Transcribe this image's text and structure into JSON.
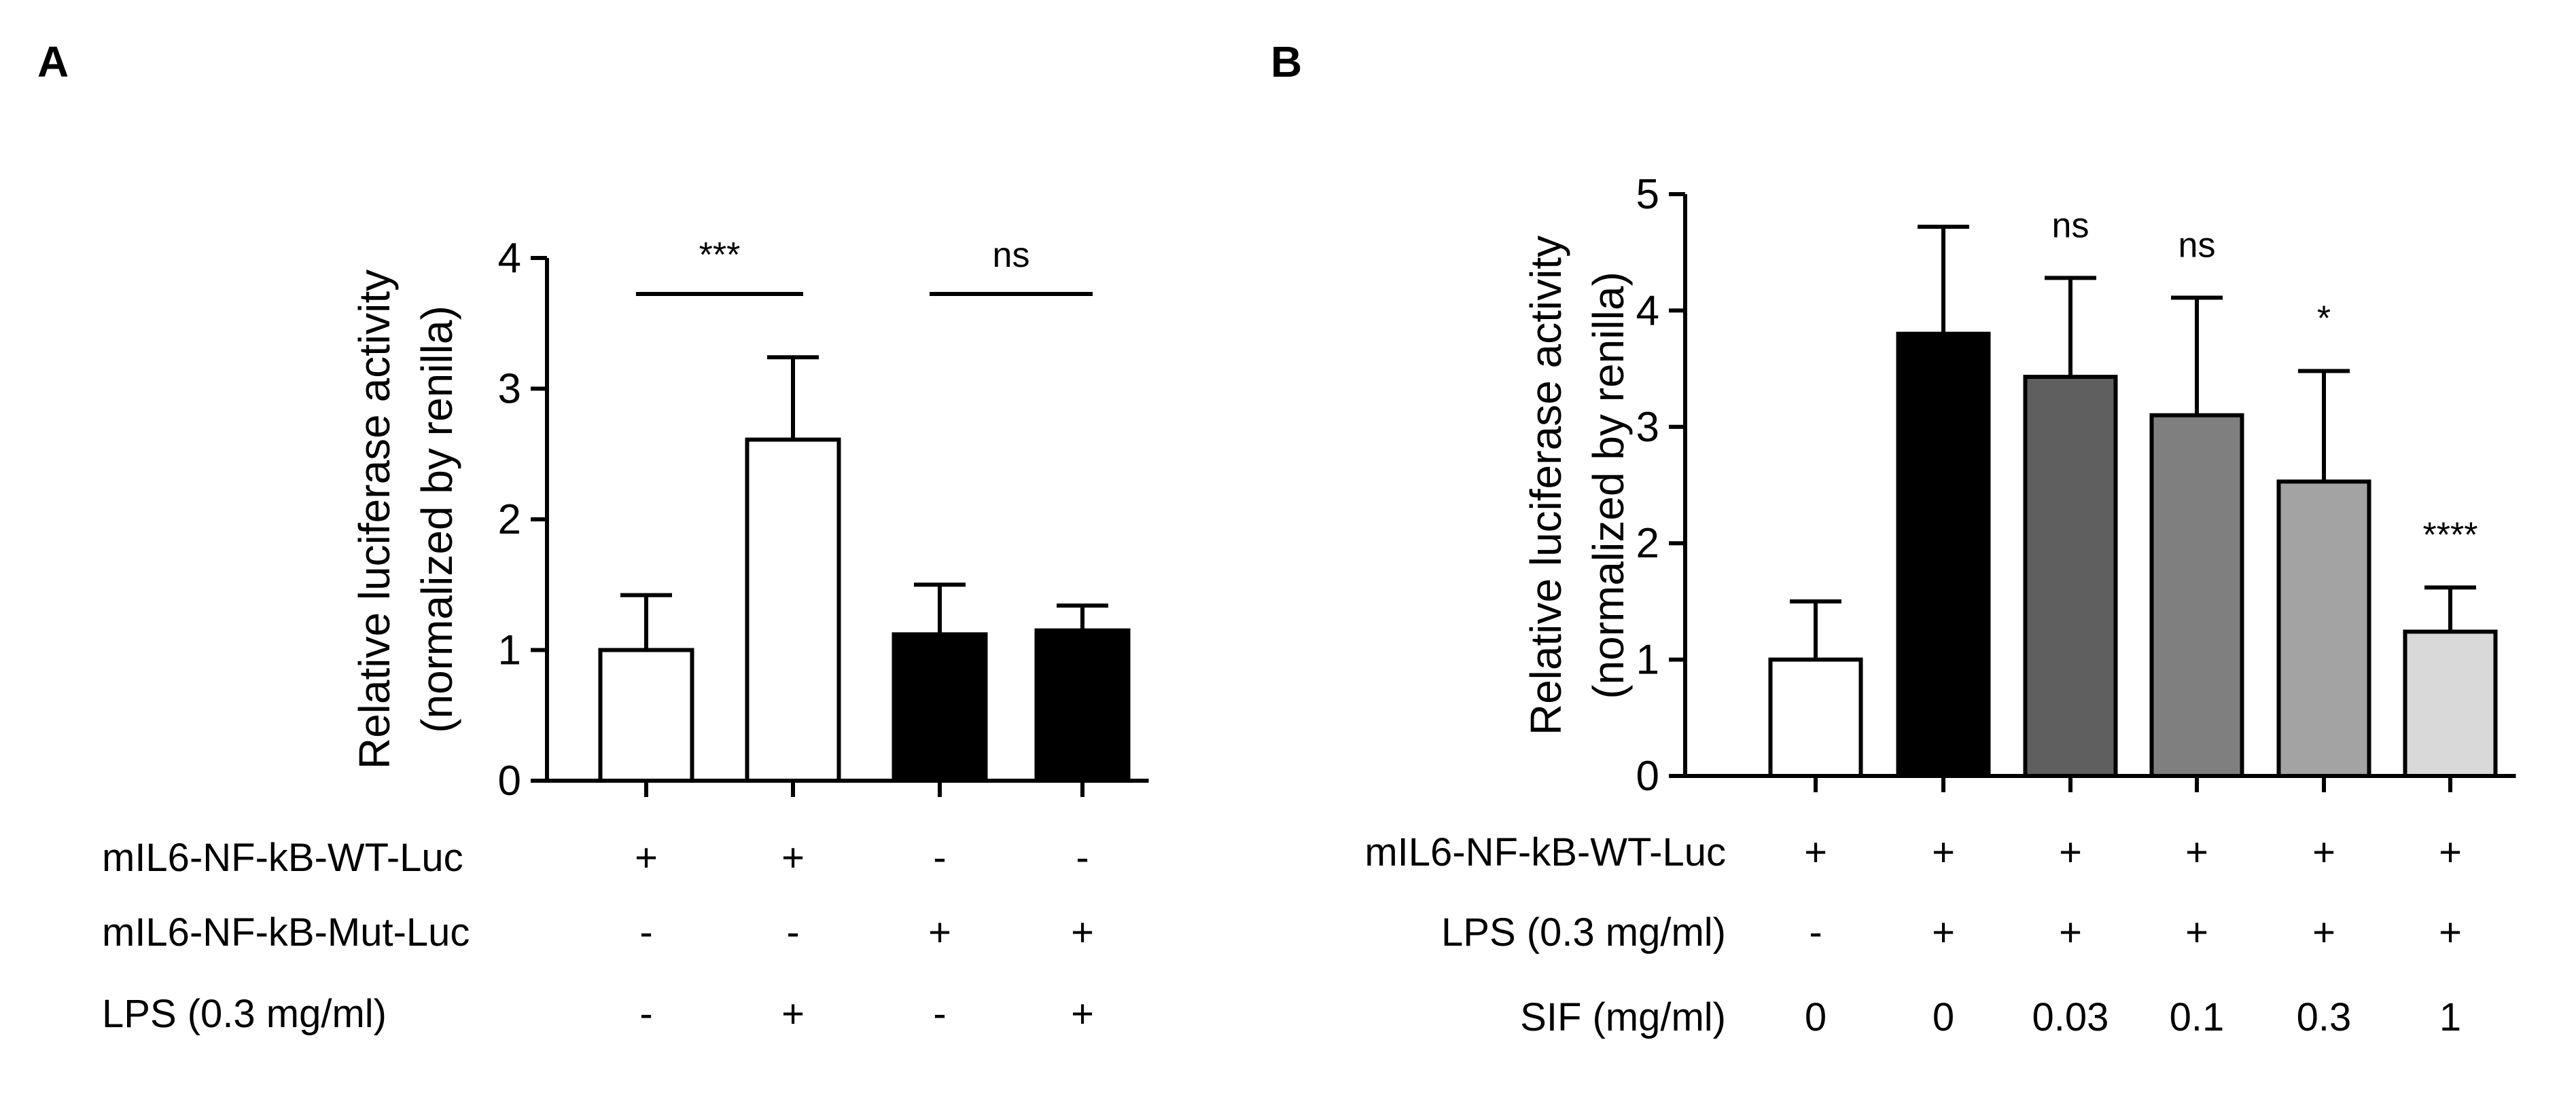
{
  "chart_data": [
    {
      "type": "bar",
      "panel": "A",
      "ylabel_line1": "Relative luciferase activity",
      "ylabel_line2": "(normalized by renilla)",
      "ylim": [
        0,
        4
      ],
      "yticks": [
        "0",
        "1",
        "2",
        "3",
        "4"
      ],
      "values": [
        1.0,
        2.61,
        1.12,
        1.15
      ],
      "errors": [
        0.42,
        0.63,
        0.38,
        0.19
      ],
      "bar_colors": [
        "#ffffff",
        "#ffffff",
        "#000000",
        "#000000"
      ],
      "significance": [
        {
          "label": "***",
          "bars": [
            0,
            1
          ]
        },
        {
          "label": "ns",
          "bars": [
            2,
            3
          ]
        }
      ],
      "conditions": [
        {
          "label": "mIL6-NF-kB-WT-Luc",
          "values": [
            "+",
            "+",
            "-",
            "-"
          ]
        },
        {
          "label": "mIL6-NF-kB-Mut-Luc",
          "values": [
            "-",
            "-",
            "+",
            "+"
          ]
        },
        {
          "label": "LPS (0.3 mg/ml)",
          "values": [
            "-",
            "+",
            "-",
            "+"
          ]
        }
      ]
    },
    {
      "type": "bar",
      "panel": "B",
      "ylabel_line1": "Relative luciferase activity",
      "ylabel_line2": "(normalized by renilla)",
      "ylim": [
        0,
        5
      ],
      "yticks": [
        "0",
        "1",
        "2",
        "3",
        "4",
        "5"
      ],
      "values": [
        1.0,
        3.8,
        3.43,
        3.1,
        2.53,
        1.24
      ],
      "errors": [
        0.5,
        0.92,
        0.85,
        1.01,
        0.95,
        0.38
      ],
      "bar_colors": [
        "#ffffff",
        "#000000",
        "#5f5f5f",
        "#7f7f7f",
        "#a3a3a3",
        "#d9d9d9"
      ],
      "significance_labels": [
        "",
        "",
        "ns",
        "ns",
        "*",
        "****"
      ],
      "conditions": [
        {
          "label": "mIL6-NF-kB-WT-Luc",
          "values": [
            "+",
            "+",
            "+",
            "+",
            "+",
            "+"
          ]
        },
        {
          "label": "LPS (0.3 mg/ml)",
          "values": [
            "-",
            "+",
            "+",
            "+",
            "+",
            "+"
          ]
        },
        {
          "label": "SIF (mg/ml)",
          "values": [
            "0",
            "0",
            "0.03",
            "0.1",
            "0.3",
            "1"
          ]
        }
      ]
    }
  ]
}
